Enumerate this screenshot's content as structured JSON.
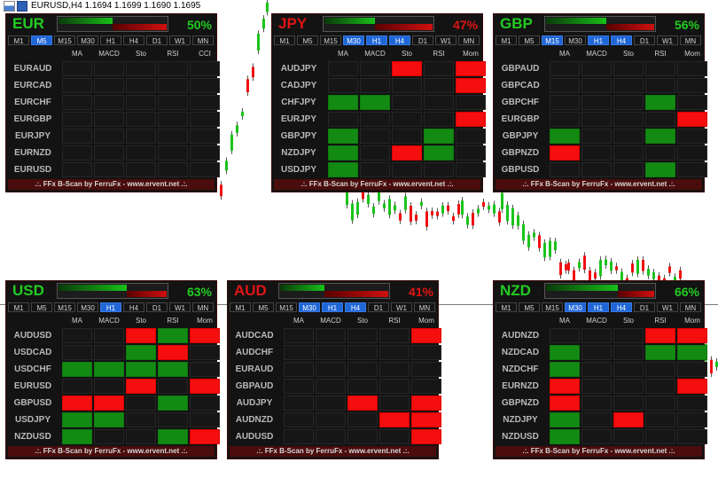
{
  "window": {
    "title": "EURUSD,H4  1.1694 1.1699 1.1690 1.1695"
  },
  "timeframes": [
    "M1",
    "M5",
    "M15",
    "M30",
    "H1",
    "H4",
    "D1",
    "W1",
    "MN"
  ],
  "indicators_a": [
    "MA",
    "MACD",
    "Sto",
    "RSI",
    "CCI"
  ],
  "indicators_b": [
    "MA",
    "MACD",
    "Sto",
    "RSI",
    "Mom"
  ],
  "footer": ".:. FFx B-Scan by FerruFx - www.ervent.net .:.",
  "colors": {
    "up": "#138b13",
    "down": "#f40e0e",
    "panel_bg": "#131313"
  },
  "panels": [
    {
      "currency": "EUR",
      "pct": "50%",
      "strength": 0.5,
      "cur_color": "#22cc22",
      "pct_color": "#22cc22",
      "tf_on": [
        1
      ],
      "ind": "a",
      "rows": [
        {
          "pair": "EURAUD",
          "cells": "....."
        },
        {
          "pair": "EURCAD",
          "cells": "....."
        },
        {
          "pair": "EURCHF",
          "cells": "....."
        },
        {
          "pair": "EURGBP",
          "cells": "....."
        },
        {
          "pair": "EURJPY",
          "cells": "....."
        },
        {
          "pair": "EURNZD",
          "cells": "....."
        },
        {
          "pair": "EURUSD",
          "cells": "....."
        }
      ]
    },
    {
      "currency": "JPY",
      "pct": "47%",
      "strength": 0.47,
      "cur_color": "#e01515",
      "pct_color": "#e01515",
      "tf_on": [
        3,
        4,
        5
      ],
      "ind": "b",
      "rows": [
        {
          "pair": "AUDJPY",
          "cells": "..r.r"
        },
        {
          "pair": "CADJPY",
          "cells": "....r"
        },
        {
          "pair": "CHFJPY",
          "cells": "gg..."
        },
        {
          "pair": "EURJPY",
          "cells": "....r"
        },
        {
          "pair": "GBPJPY",
          "cells": "g..g."
        },
        {
          "pair": "NZDJPY",
          "cells": "g.rg."
        },
        {
          "pair": "USDJPY",
          "cells": "g...."
        }
      ]
    },
    {
      "currency": "GBP",
      "pct": "56%",
      "strength": 0.56,
      "cur_color": "#22cc22",
      "pct_color": "#22cc22",
      "tf_on": [
        2,
        4,
        5
      ],
      "ind": "b",
      "rows": [
        {
          "pair": "GBPAUD",
          "cells": "....."
        },
        {
          "pair": "GBPCAD",
          "cells": "....."
        },
        {
          "pair": "GBPCHF",
          "cells": "...g."
        },
        {
          "pair": "EURGBP",
          "cells": "....r"
        },
        {
          "pair": "GBPJPY",
          "cells": "g..g."
        },
        {
          "pair": "GBPNZD",
          "cells": "r...."
        },
        {
          "pair": "GBPUSD",
          "cells": "...g."
        }
      ]
    },
    {
      "currency": "USD",
      "pct": "63%",
      "strength": 0.63,
      "cur_color": "#22cc22",
      "pct_color": "#22cc22",
      "tf_on": [
        4
      ],
      "ind": "b",
      "rows": [
        {
          "pair": "AUDUSD",
          "cells": "..rgr"
        },
        {
          "pair": "USDCAD",
          "cells": "..gr."
        },
        {
          "pair": "USDCHF",
          "cells": "gggg."
        },
        {
          "pair": "EURUSD",
          "cells": "..r.r"
        },
        {
          "pair": "GBPUSD",
          "cells": "rr.g."
        },
        {
          "pair": "USDJPY",
          "cells": "gg..."
        },
        {
          "pair": "NZDUSD",
          "cells": "g..gr"
        }
      ]
    },
    {
      "currency": "AUD",
      "pct": "41%",
      "strength": 0.41,
      "cur_color": "#e01515",
      "pct_color": "#e01515",
      "tf_on": [
        3,
        4,
        5
      ],
      "ind": "b",
      "rows": [
        {
          "pair": "AUDCAD",
          "cells": "....r"
        },
        {
          "pair": "AUDCHF",
          "cells": "....."
        },
        {
          "pair": "EURAUD",
          "cells": "....."
        },
        {
          "pair": "GBPAUD",
          "cells": "....."
        },
        {
          "pair": "AUDJPY",
          "cells": "..r.r"
        },
        {
          "pair": "AUDNZD",
          "cells": "...rr"
        },
        {
          "pair": "AUDUSD",
          "cells": "....r"
        }
      ]
    },
    {
      "currency": "NZD",
      "pct": "66%",
      "strength": 0.66,
      "cur_color": "#22cc22",
      "pct_color": "#22cc22",
      "tf_on": [
        3,
        4,
        5
      ],
      "ind": "b",
      "rows": [
        {
          "pair": "AUDNZD",
          "cells": "...rr"
        },
        {
          "pair": "NZDCAD",
          "cells": "g..gg"
        },
        {
          "pair": "NZDCHF",
          "cells": "g...."
        },
        {
          "pair": "EURNZD",
          "cells": "r...r"
        },
        {
          "pair": "GBPNZD",
          "cells": "r...."
        },
        {
          "pair": "NZDJPY",
          "cells": "g.r.."
        },
        {
          "pair": "NZDUSD",
          "cells": "g...."
        }
      ]
    }
  ]
}
